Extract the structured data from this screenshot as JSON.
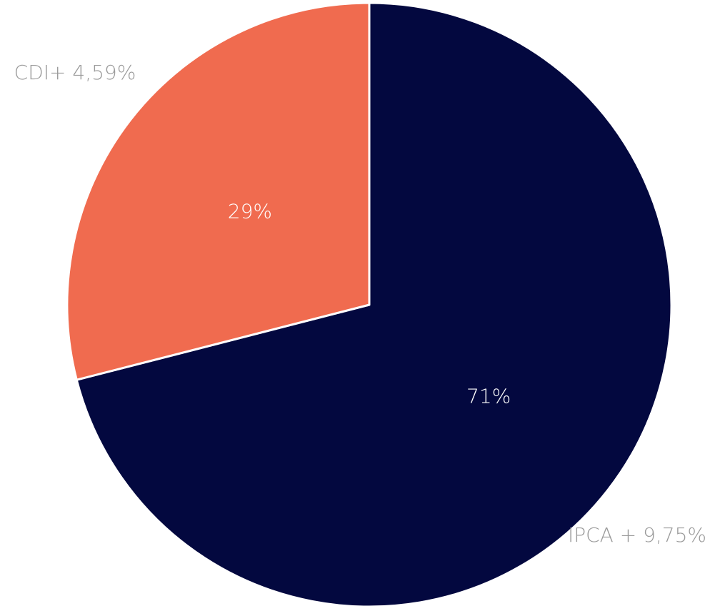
{
  "chart_data": {
    "type": "pie",
    "categories": [
      "IPCA + 9,75%",
      "CDI+ 4,59%"
    ],
    "values": [
      71,
      29
    ],
    "value_labels": [
      "71%",
      "29%"
    ],
    "colors": [
      "#03083f",
      "#f06b4f"
    ],
    "start_angle": 0,
    "direction": "clockwise"
  }
}
